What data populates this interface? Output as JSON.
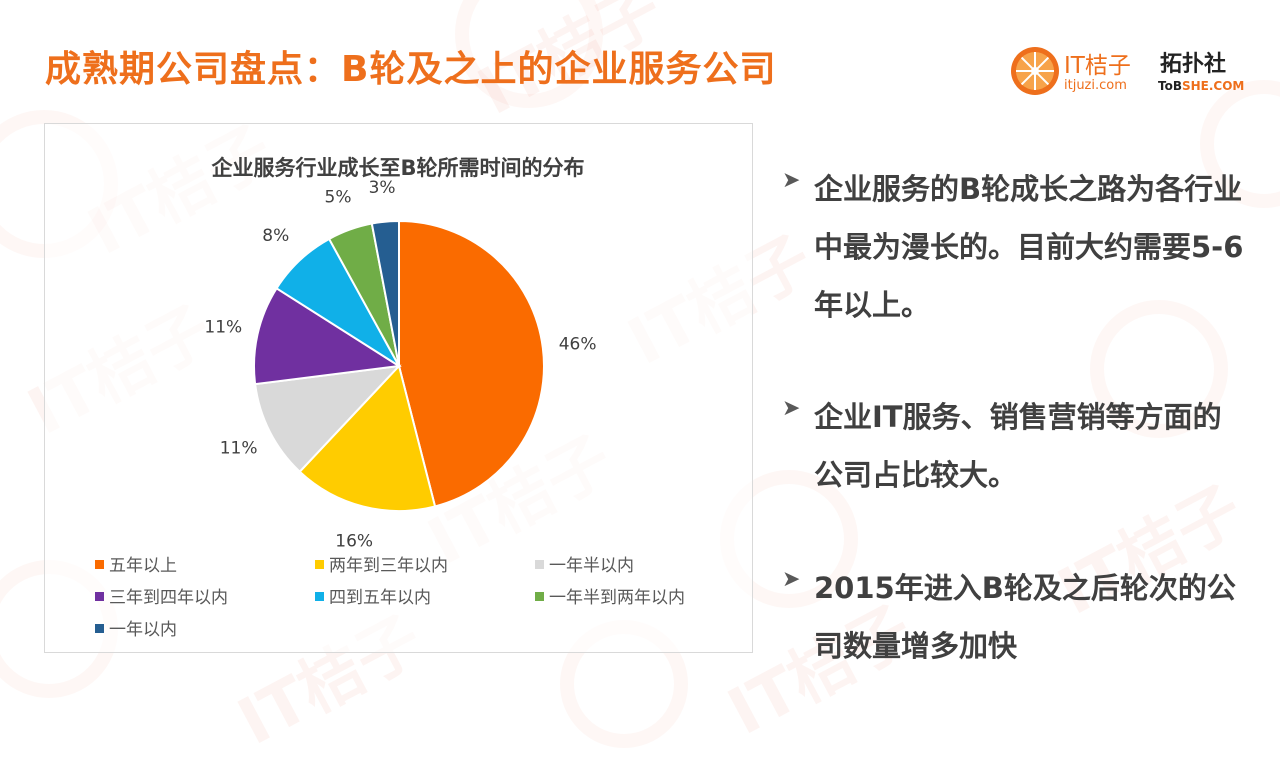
{
  "page": {
    "title": "成熟期公司盘点：B轮及之上的企业服务公司"
  },
  "logo": {
    "brand1": "IT桔子",
    "brand1_url": "itjuzi.com",
    "brand2": "拓扑社",
    "brand2_url_a": "ToB",
    "brand2_url_b": "SHE.COM",
    "watermark": "IT桔子",
    "accent_color": "#ee6f1c"
  },
  "bullets": [
    "企业服务的B轮成长之路为各行业中最为漫长的。目前大约需要5-6年以上。",
    "企业IT服务、销售营销等方面的公司占比较大。",
    "2015年进入B轮及之后轮次的公司数量增多加快"
  ],
  "chart_data": {
    "type": "pie",
    "title": "企业服务行业成长至B轮所需时间的分布",
    "slices": [
      {
        "label": "五年以上",
        "value": 46,
        "display": "46%",
        "color": "#fa6b00"
      },
      {
        "label": "两年到三年以内",
        "value": 16,
        "display": "16%",
        "color": "#ffcc00"
      },
      {
        "label": "一年半以内",
        "value": 11,
        "display": "11%",
        "color": "#d9d9d9"
      },
      {
        "label": "三年到四年以内",
        "value": 11,
        "display": "11%",
        "color": "#7030a0"
      },
      {
        "label": "四到五年以内",
        "value": 8,
        "display": "8%",
        "color": "#10b0e8"
      },
      {
        "label": "一年半到两年以内",
        "value": 5,
        "display": "5%",
        "color": "#70ad47"
      },
      {
        "label": "一年以内",
        "value": 3,
        "display": "3%",
        "color": "#255e91"
      }
    ],
    "legend_position": "bottom"
  }
}
